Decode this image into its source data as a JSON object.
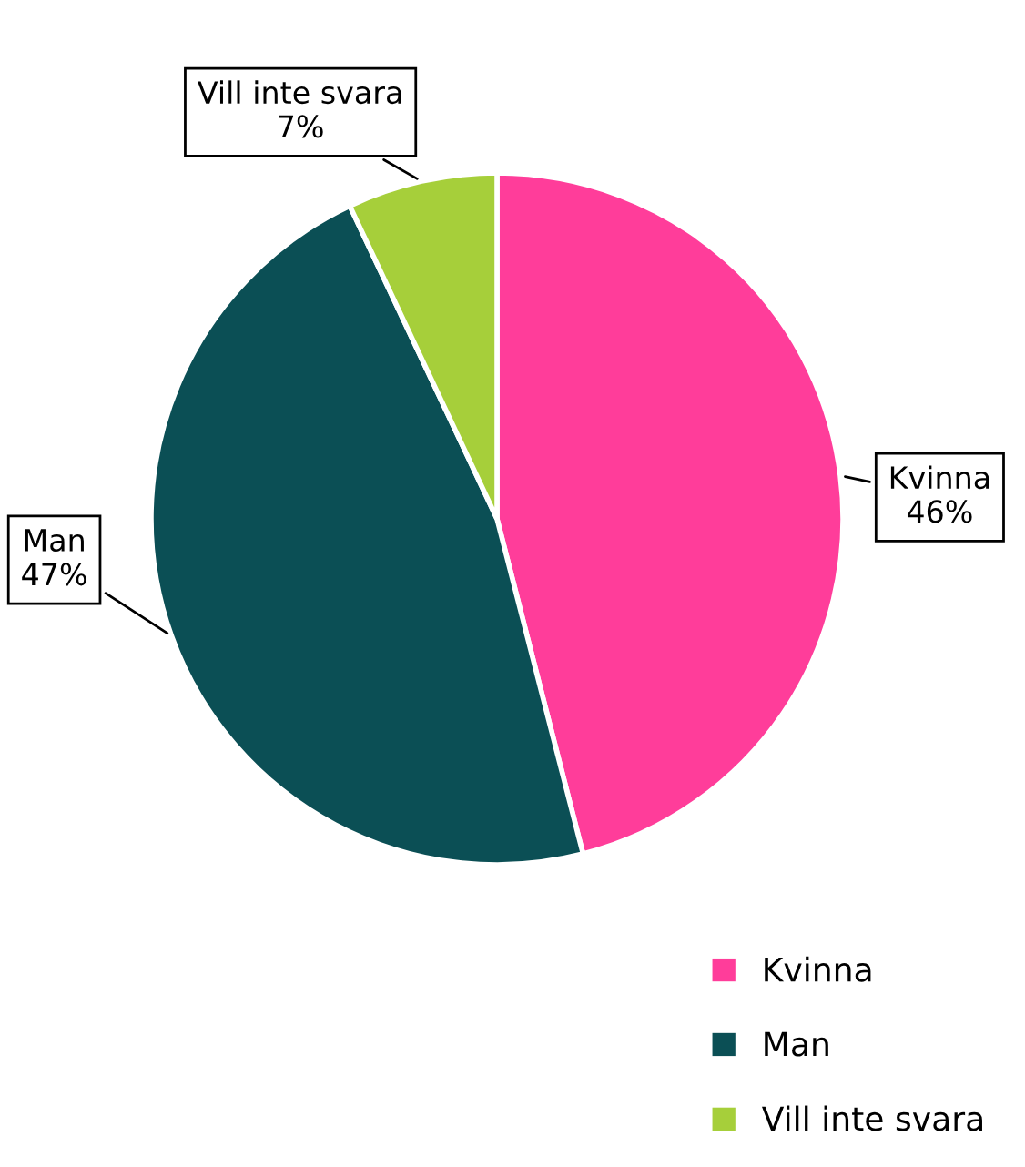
{
  "chart_data": {
    "type": "pie",
    "categories": [
      "Kvinna",
      "Man",
      "Vill inte svara"
    ],
    "values": [
      46,
      47,
      7
    ],
    "colors": [
      "#ff3d9a",
      "#0b4f55",
      "#a6cf3a"
    ],
    "value_labels": [
      "46%",
      "47%",
      "7%"
    ],
    "legend": "bottom right"
  }
}
